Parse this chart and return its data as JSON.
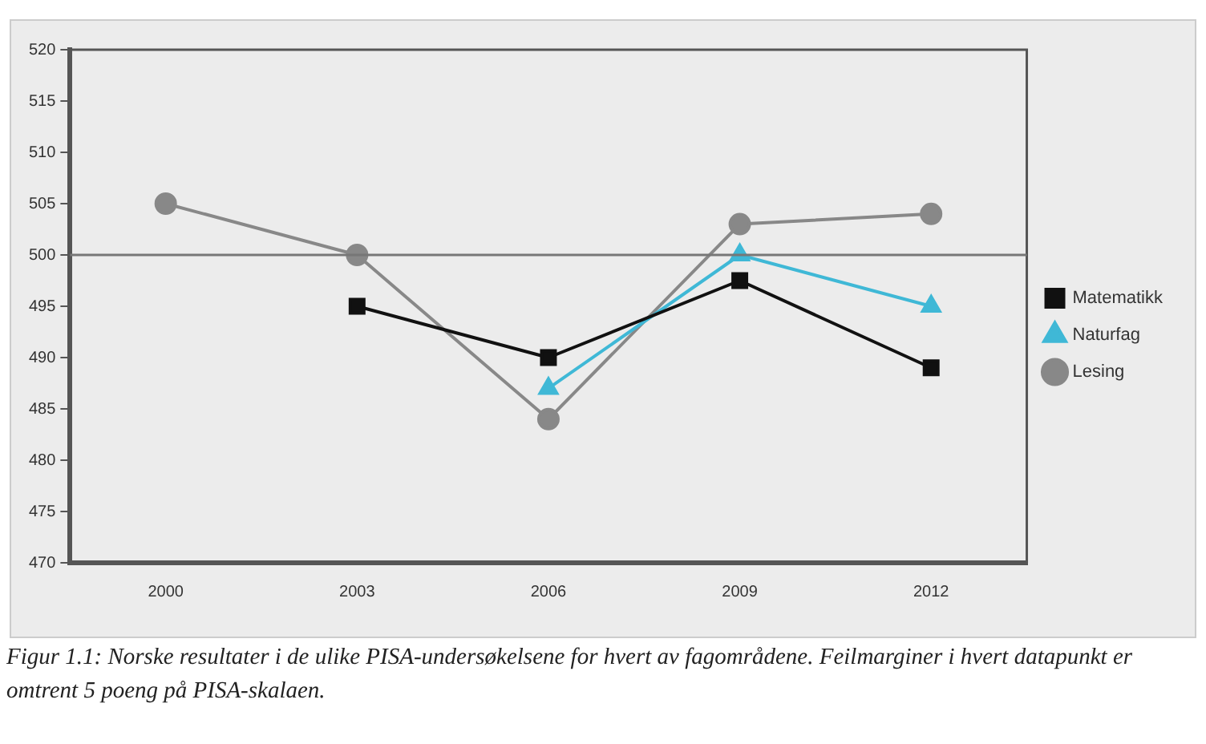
{
  "chart_data": {
    "type": "line",
    "categories": [
      "2000",
      "2003",
      "2006",
      "2009",
      "2012"
    ],
    "series": [
      {
        "name": "Matematikk",
        "color": "#111111",
        "marker": "square",
        "values": [
          null,
          495,
          490,
          497.5,
          489
        ]
      },
      {
        "name": "Naturfag",
        "color": "#3fb8d6",
        "marker": "triangle",
        "values": [
          null,
          null,
          487,
          500,
          495
        ]
      },
      {
        "name": "Lesing",
        "color": "#888888",
        "marker": "circle",
        "values": [
          505,
          500,
          484,
          503,
          504
        ]
      }
    ],
    "ylim": [
      470,
      520
    ],
    "yticks": [
      470,
      475,
      480,
      485,
      490,
      495,
      500,
      505,
      510,
      515,
      520
    ],
    "ref_lines": [
      {
        "axis": "y",
        "value": 500,
        "color": "#777777"
      }
    ],
    "grid": false,
    "legend": "right",
    "annotations": [
      "Figur 1.1: Norske resultater i de ulike PISA-undersøkelsene for hvert av fagområdene. Feilmarginer i hvert datapunkt er omtrent 5 poeng på PISA-skalaen."
    ]
  }
}
